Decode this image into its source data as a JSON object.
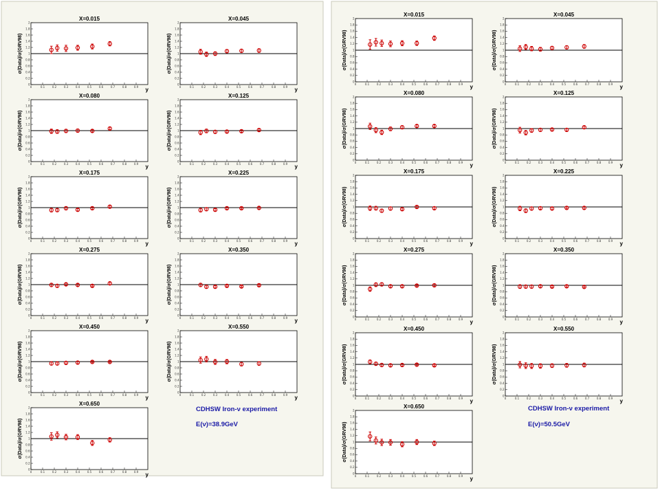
{
  "chart_data": [
    {
      "type": "scatter",
      "title": "CDHSW Iron-ν experiment",
      "subtitle": "E(ν)=38.9GeV",
      "ylabel": "σ(Data)/σ(GRV98)",
      "xlabel": "y",
      "xlim": [
        0,
        1
      ],
      "ylim": [
        0,
        2
      ],
      "x_ticks": [
        "0",
        "0.1",
        "0.2",
        "0.3",
        "0.4",
        "0.5",
        "0.6",
        "0.7",
        "0.8",
        "0.9"
      ],
      "y_ticks": [
        "0",
        "0.2",
        "0.4",
        "0.6",
        "0.8",
        "1",
        "1.2",
        "1.4",
        "1.6",
        "1.8",
        "2"
      ],
      "reference_line": 1,
      "grid": false,
      "panels": [
        {
          "label": "X=0.015",
          "x": [
            0.175,
            0.225,
            0.3,
            0.4,
            0.525,
            0.675
          ],
          "y": [
            1.12,
            1.18,
            1.17,
            1.19,
            1.23,
            1.32
          ],
          "err": [
            0.12,
            0.1,
            0.1,
            0.08,
            0.08,
            0.07
          ]
        },
        {
          "label": "X=0.045",
          "x": [
            0.175,
            0.225,
            0.3,
            0.4,
            0.525,
            0.675
          ],
          "y": [
            1.06,
            0.98,
            1.0,
            1.08,
            1.09,
            1.1
          ],
          "err": [
            0.08,
            0.07,
            0.06,
            0.05,
            0.05,
            0.06
          ]
        },
        {
          "label": "X=0.080",
          "x": [
            0.175,
            0.225,
            0.3,
            0.4,
            0.525,
            0.675
          ],
          "y": [
            0.98,
            0.97,
            0.99,
            1.0,
            0.99,
            1.07
          ],
          "err": [
            0.07,
            0.06,
            0.05,
            0.05,
            0.04,
            0.04
          ]
        },
        {
          "label": "X=0.125",
          "x": [
            0.175,
            0.225,
            0.3,
            0.4,
            0.525,
            0.675
          ],
          "y": [
            0.94,
            0.99,
            0.96,
            0.97,
            0.98,
            1.02
          ],
          "err": [
            0.07,
            0.06,
            0.05,
            0.04,
            0.04,
            0.04
          ]
        },
        {
          "label": "X=0.175",
          "x": [
            0.175,
            0.225,
            0.3,
            0.4,
            0.525,
            0.675
          ],
          "y": [
            0.92,
            0.92,
            0.98,
            0.93,
            0.98,
            1.03
          ],
          "err": [
            0.06,
            0.05,
            0.05,
            0.04,
            0.04,
            0.04
          ]
        },
        {
          "label": "X=0.225",
          "x": [
            0.175,
            0.225,
            0.3,
            0.4,
            0.525,
            0.675
          ],
          "y": [
            0.92,
            0.95,
            0.93,
            0.98,
            0.98,
            0.99
          ],
          "err": [
            0.06,
            0.05,
            0.04,
            0.04,
            0.03,
            0.04
          ]
        },
        {
          "label": "X=0.275",
          "x": [
            0.175,
            0.225,
            0.3,
            0.4,
            0.525,
            0.675
          ],
          "y": [
            0.99,
            0.96,
            1.01,
            0.99,
            0.96,
            1.04
          ],
          "err": [
            0.05,
            0.05,
            0.04,
            0.04,
            0.03,
            0.04
          ]
        },
        {
          "label": "X=0.350",
          "x": [
            0.175,
            0.225,
            0.3,
            0.4,
            0.525,
            0.675
          ],
          "y": [
            0.99,
            0.93,
            0.93,
            0.96,
            0.94,
            0.98
          ],
          "err": [
            0.05,
            0.05,
            0.04,
            0.03,
            0.03,
            0.03
          ]
        },
        {
          "label": "X=0.450",
          "x": [
            0.175,
            0.225,
            0.3,
            0.4,
            0.525,
            0.675
          ],
          "y": [
            0.94,
            0.94,
            0.96,
            0.97,
            0.99,
            0.99
          ],
          "err": [
            0.05,
            0.05,
            0.04,
            0.04,
            0.03,
            0.03
          ]
        },
        {
          "label": "X=0.550",
          "x": [
            0.175,
            0.225,
            0.3,
            0.4,
            0.525,
            0.675
          ],
          "y": [
            1.05,
            1.08,
            0.99,
            1.0,
            0.92,
            0.94
          ],
          "err": [
            0.1,
            0.09,
            0.08,
            0.07,
            0.06,
            0.06
          ]
        },
        {
          "label": "X=0.650",
          "x": [
            0.175,
            0.225,
            0.3,
            0.4,
            0.525,
            0.675
          ],
          "y": [
            1.07,
            1.12,
            1.05,
            1.05,
            0.86,
            0.96
          ],
          "err": [
            0.12,
            0.1,
            0.09,
            0.08,
            0.08,
            0.07
          ]
        }
      ]
    },
    {
      "type": "scatter",
      "title": "CDHSW Iron-ν experiment",
      "subtitle": "E(ν)=50.5GeV",
      "ylabel": "σ(Data)/σ(GRV98)",
      "xlabel": "y",
      "xlim": [
        0,
        1
      ],
      "ylim": [
        0,
        2
      ],
      "x_ticks": [
        "0",
        "0.1",
        "0.2",
        "0.3",
        "0.4",
        "0.5",
        "0.6",
        "0.7",
        "0.8",
        "0.9"
      ],
      "y_ticks": [
        "0",
        "0.2",
        "0.4",
        "0.6",
        "0.8",
        "1",
        "1.2",
        "1.4",
        "1.6",
        "1.8",
        "2"
      ],
      "reference_line": 1,
      "grid": false,
      "panels": [
        {
          "label": "X=0.015",
          "x": [
            0.125,
            0.175,
            0.225,
            0.3,
            0.4,
            0.525,
            0.675
          ],
          "y": [
            1.18,
            1.25,
            1.22,
            1.2,
            1.22,
            1.22,
            1.38
          ],
          "err": [
            0.15,
            0.12,
            0.1,
            0.09,
            0.08,
            0.07,
            0.07
          ]
        },
        {
          "label": "X=0.045",
          "x": [
            0.125,
            0.175,
            0.225,
            0.3,
            0.4,
            0.525,
            0.675
          ],
          "y": [
            1.05,
            1.1,
            1.05,
            1.03,
            1.07,
            1.09,
            1.12
          ],
          "err": [
            0.09,
            0.08,
            0.07,
            0.06,
            0.05,
            0.05,
            0.06
          ]
        },
        {
          "label": "X=0.080",
          "x": [
            0.125,
            0.175,
            0.225,
            0.3,
            0.4,
            0.525,
            0.675
          ],
          "y": [
            1.07,
            0.95,
            0.88,
            0.99,
            1.04,
            1.08,
            1.08
          ],
          "err": [
            0.1,
            0.08,
            0.07,
            0.06,
            0.05,
            0.04,
            0.04
          ]
        },
        {
          "label": "X=0.125",
          "x": [
            0.125,
            0.175,
            0.225,
            0.3,
            0.4,
            0.525,
            0.675
          ],
          "y": [
            0.95,
            0.87,
            0.94,
            0.96,
            0.97,
            0.96,
            1.04
          ],
          "err": [
            0.09,
            0.07,
            0.06,
            0.05,
            0.04,
            0.04,
            0.04
          ]
        },
        {
          "label": "X=0.175",
          "x": [
            0.125,
            0.175,
            0.225,
            0.3,
            0.4,
            0.525,
            0.675
          ],
          "y": [
            0.96,
            0.96,
            0.88,
            0.95,
            0.93,
            1.0,
            0.96
          ],
          "err": [
            0.07,
            0.06,
            0.05,
            0.05,
            0.04,
            0.04,
            0.04
          ]
        },
        {
          "label": "X=0.225",
          "x": [
            0.125,
            0.175,
            0.225,
            0.3,
            0.4,
            0.525,
            0.675
          ],
          "y": [
            0.95,
            0.88,
            0.95,
            0.96,
            0.95,
            0.97,
            0.97
          ],
          "err": [
            0.07,
            0.06,
            0.05,
            0.04,
            0.04,
            0.03,
            0.04
          ]
        },
        {
          "label": "X=0.275",
          "x": [
            0.125,
            0.175,
            0.225,
            0.3,
            0.4,
            0.525,
            0.675
          ],
          "y": [
            0.88,
            1.02,
            1.03,
            0.97,
            0.97,
            0.99,
            1.0
          ],
          "err": [
            0.07,
            0.06,
            0.05,
            0.04,
            0.04,
            0.03,
            0.04
          ]
        },
        {
          "label": "X=0.350",
          "x": [
            0.125,
            0.175,
            0.225,
            0.3,
            0.4,
            0.525,
            0.675
          ],
          "y": [
            0.96,
            0.96,
            0.96,
            0.97,
            0.96,
            0.97,
            0.95
          ],
          "err": [
            0.06,
            0.05,
            0.05,
            0.04,
            0.03,
            0.03,
            0.03
          ]
        },
        {
          "label": "X=0.450",
          "x": [
            0.125,
            0.175,
            0.225,
            0.3,
            0.4,
            0.525,
            0.675
          ],
          "y": [
            1.08,
            1.02,
            0.98,
            0.97,
            0.98,
            0.99,
            0.97
          ],
          "err": [
            0.06,
            0.05,
            0.05,
            0.04,
            0.04,
            0.03,
            0.03
          ]
        },
        {
          "label": "X=0.550",
          "x": [
            0.125,
            0.175,
            0.225,
            0.3,
            0.4,
            0.525,
            0.675
          ],
          "y": [
            0.99,
            0.96,
            0.95,
            0.95,
            0.96,
            0.97,
            0.98
          ],
          "err": [
            0.1,
            0.09,
            0.08,
            0.07,
            0.06,
            0.06,
            0.06
          ]
        },
        {
          "label": "X=0.650",
          "x": [
            0.125,
            0.175,
            0.225,
            0.3,
            0.4,
            0.525,
            0.675
          ],
          "y": [
            1.18,
            1.05,
            0.99,
            0.99,
            0.93,
            1.0,
            0.96
          ],
          "err": [
            0.14,
            0.11,
            0.1,
            0.09,
            0.08,
            0.08,
            0.07
          ]
        }
      ]
    }
  ]
}
